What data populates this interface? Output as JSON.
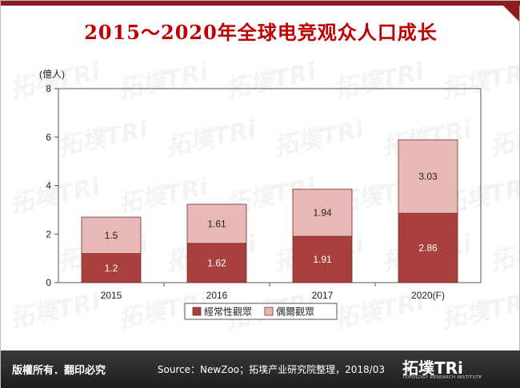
{
  "title": "2015～2020年全球电竞观众人口成长",
  "watermark_text": "拓墣TRi",
  "footer": {
    "copyright": "版權所有．翻印必究",
    "source": "Source：NewZoo；拓墣产业研究院整理，2018/03"
  },
  "logo": {
    "name": "拓墣TRi",
    "subtitle": "TOPOLOGY RESEARCH INSTITUTE"
  },
  "colors": {
    "brand": "#8c1d1d",
    "title": "#c00000",
    "regular": "#a9403d",
    "occasional": "#e8b8b7"
  },
  "chart_data": {
    "type": "bar",
    "stacked": true,
    "title": "2015～2020年全球电竞观众人口成长",
    "ylabel": "(億人)",
    "xlabel": "",
    "categories": [
      "2015",
      "2016",
      "2017",
      "2020(F)"
    ],
    "ylim": [
      0,
      8
    ],
    "yticks": [
      0,
      2,
      4,
      6,
      8
    ],
    "series": [
      {
        "name": "經常性觀眾",
        "values": [
          1.2,
          1.62,
          1.91,
          2.86
        ],
        "labels": [
          "1.2",
          "1.62",
          "1.91",
          "2.86"
        ],
        "color": "#a9403d",
        "label_color": "#ffffff"
      },
      {
        "name": "偶爾觀眾",
        "values": [
          1.5,
          1.61,
          1.94,
          3.03
        ],
        "labels": [
          "1.5",
          "1.61",
          "1.94",
          "3.03"
        ],
        "color": "#e8b8b7",
        "label_color": "#222222"
      }
    ],
    "legend_position": "bottom",
    "grid": false
  }
}
